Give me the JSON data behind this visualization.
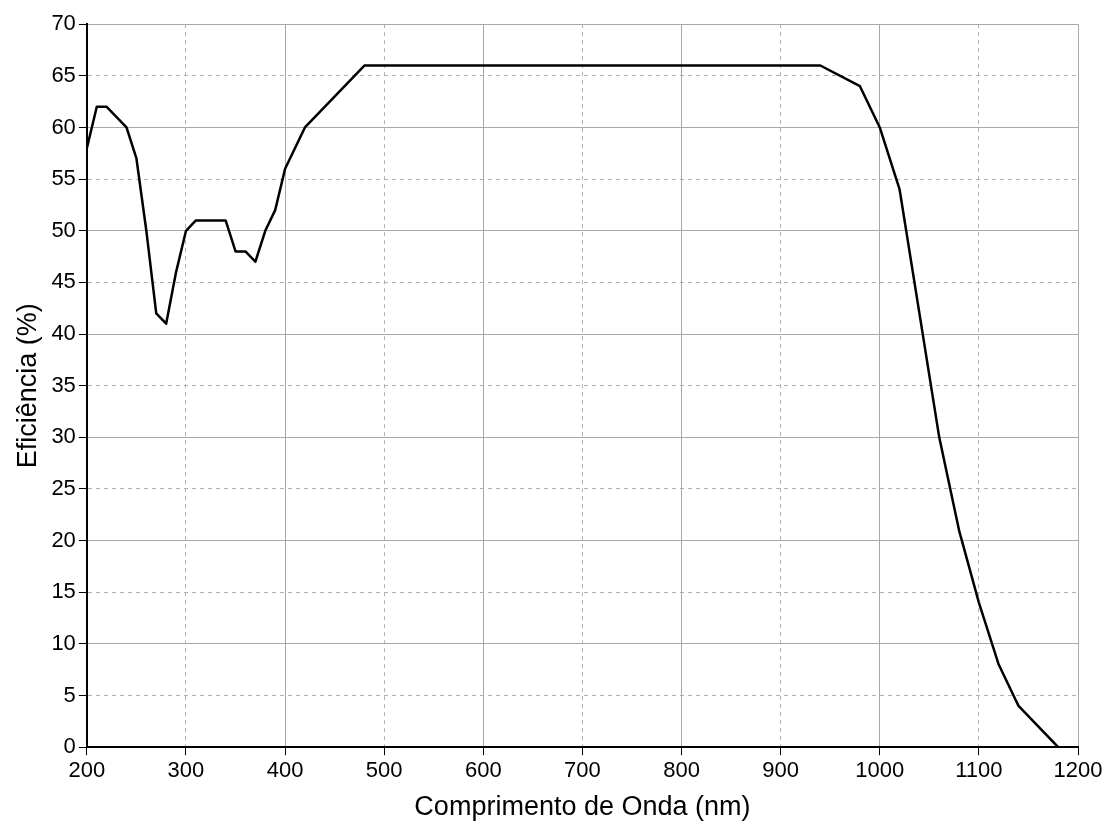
{
  "chart_data": {
    "type": "line",
    "xlabel": "Comprimento de Onda (nm)",
    "ylabel": "Eficiência (%)",
    "x": [
      200,
      210,
      220,
      240,
      250,
      260,
      270,
      280,
      290,
      300,
      310,
      340,
      350,
      360,
      370,
      380,
      390,
      400,
      420,
      480,
      940,
      980,
      1000,
      1020,
      1040,
      1060,
      1080,
      1100,
      1120,
      1140,
      1180
    ],
    "series": [
      {
        "color": "#000000",
        "values": [
          58,
          62,
          62,
          60,
          57,
          50,
          42,
          41,
          46,
          50,
          51,
          51,
          48,
          48,
          47,
          50,
          52,
          56,
          60,
          66,
          66,
          64,
          60,
          54,
          42,
          30,
          21,
          14,
          8,
          4,
          0
        ]
      }
    ],
    "xlim": [
      200,
      1200
    ],
    "xticks": [
      200,
      300,
      400,
      500,
      600,
      700,
      800,
      900,
      1000,
      1100,
      1200
    ],
    "ylim": [
      0,
      70
    ],
    "yticks": [
      0,
      5,
      10,
      15,
      20,
      25,
      30,
      35,
      40,
      45,
      50,
      55,
      60,
      65,
      70
    ],
    "grid": true,
    "legend": false,
    "marker": "none",
    "line_style": "solid"
  }
}
